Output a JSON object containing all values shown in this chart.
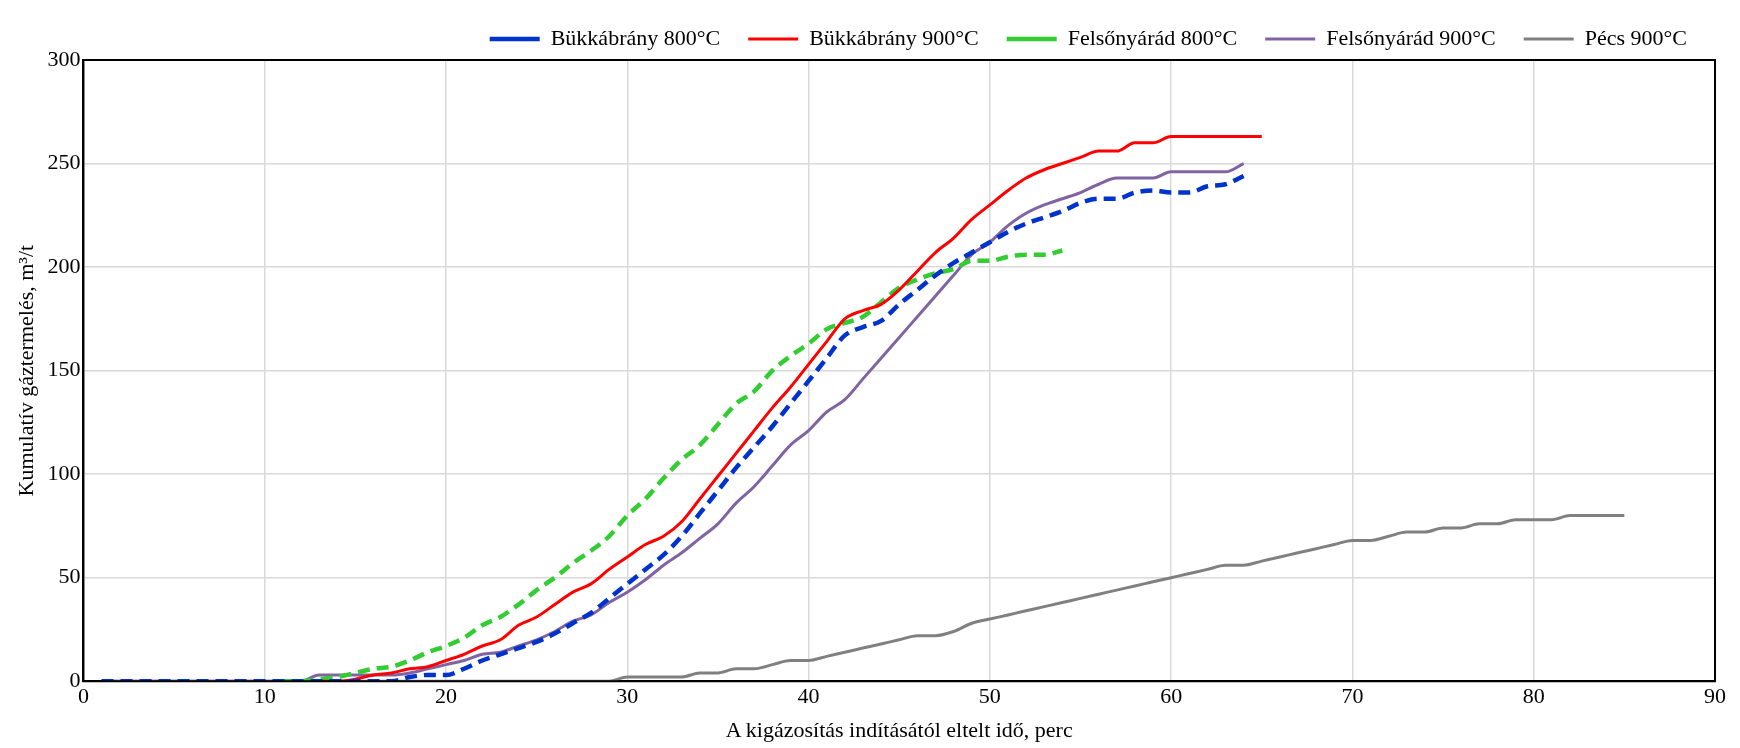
{
  "chart_data": {
    "type": "line",
    "xlabel": "A kigázosítás indításától eltelt idő, perc",
    "ylabel": "Kumulatív gáztermelés, m³/t",
    "x": [
      1,
      2,
      3,
      4,
      5,
      6,
      7,
      8,
      9,
      10,
      11,
      12,
      13,
      14,
      15,
      16,
      17,
      18,
      19,
      20,
      21,
      22,
      23,
      24,
      25,
      26,
      27,
      28,
      29,
      30,
      31,
      32,
      33,
      34,
      35,
      36,
      37,
      38,
      39,
      40,
      41,
      42,
      43,
      44,
      45,
      46,
      47,
      48,
      49,
      50,
      51,
      52,
      53,
      54,
      55,
      56,
      57,
      58,
      59,
      60,
      61,
      62,
      63,
      64,
      65,
      66,
      67,
      68,
      69,
      70,
      71,
      72,
      73,
      74,
      75,
      76,
      77,
      78,
      79,
      80,
      81,
      82,
      83,
      84,
      85
    ],
    "xlim": [
      0,
      90
    ],
    "xticks": [
      0,
      10,
      20,
      30,
      40,
      50,
      60,
      70,
      80,
      90
    ],
    "ylim": [
      0,
      300
    ],
    "yticks": [
      0,
      50,
      100,
      150,
      200,
      250,
      300
    ],
    "grid": true,
    "legend": "top",
    "marker": "none",
    "series": [
      {
        "name": "Bükkábrány 800°C",
        "color": "#0033cc",
        "line_style": "dashed",
        "values": [
          0,
          0,
          0,
          0,
          0,
          0,
          0,
          0,
          0,
          0,
          0,
          0,
          0,
          0,
          0,
          0,
          0,
          2,
          3,
          3,
          6,
          10,
          13,
          16,
          19,
          23,
          28,
          33,
          40,
          47,
          54,
          61,
          70,
          81,
          92,
          103,
          113,
          123,
          134,
          145,
          156,
          167,
          171,
          174,
          182,
          189,
          196,
          202,
          207,
          212,
          217,
          221,
          224,
          227,
          231,
          233,
          233,
          236,
          237,
          236,
          236,
          239,
          240,
          244,
          null,
          null,
          null,
          null,
          null,
          null,
          null,
          null,
          null,
          null,
          null,
          null,
          null,
          null,
          null,
          null,
          null,
          null,
          null,
          null,
          null
        ]
      },
      {
        "name": "Bükkábrány 900°C",
        "color": "#ff0000",
        "line_style": "solid",
        "values": [
          null,
          null,
          null,
          null,
          null,
          null,
          null,
          null,
          null,
          null,
          null,
          null,
          0,
          0,
          1,
          3,
          4,
          6,
          7,
          10,
          13,
          17,
          20,
          27,
          31,
          37,
          43,
          47,
          54,
          60,
          66,
          70,
          77,
          88,
          99,
          110,
          121,
          132,
          142,
          153,
          164,
          175,
          179,
          182,
          189,
          198,
          207,
          214,
          223,
          230,
          237,
          243,
          247,
          250,
          253,
          256,
          256,
          260,
          260,
          263,
          263,
          263,
          263,
          263,
          263,
          null,
          null,
          null,
          null,
          null,
          null,
          null,
          null,
          null,
          null,
          null,
          null,
          null,
          null,
          null,
          null,
          null,
          null,
          null,
          null
        ]
      },
      {
        "name": "Felsőnyárád 800°C",
        "color": "#33cc33",
        "line_style": "dashed",
        "values": [
          null,
          null,
          null,
          null,
          null,
          null,
          null,
          null,
          null,
          null,
          0,
          0,
          1,
          2,
          4,
          6,
          7,
          10,
          14,
          17,
          21,
          27,
          31,
          37,
          44,
          50,
          57,
          63,
          70,
          80,
          88,
          98,
          107,
          114,
          124,
          134,
          140,
          150,
          157,
          163,
          170,
          173,
          176,
          183,
          190,
          194,
          197,
          199,
          203,
          203,
          205,
          206,
          206,
          208,
          null,
          null,
          null,
          null,
          null,
          null,
          null,
          null,
          null,
          null,
          null,
          null,
          null,
          null,
          null,
          null,
          null,
          null,
          null,
          null,
          null,
          null,
          null,
          null,
          null,
          null,
          null,
          null,
          null,
          null,
          null
        ]
      },
      {
        "name": "Felsőnyárád 900°C",
        "color": "#8064a2",
        "line_style": "solid",
        "values": [
          0,
          0,
          0,
          0,
          0,
          0,
          0,
          0,
          0,
          0,
          0,
          0,
          3,
          3,
          3,
          3,
          3,
          4,
          6,
          8,
          10,
          13,
          14,
          17,
          20,
          24,
          29,
          32,
          38,
          43,
          49,
          56,
          62,
          69,
          76,
          86,
          94,
          104,
          114,
          121,
          130,
          136,
          146,
          156,
          166,
          176,
          186,
          196,
          206,
          212,
          220,
          226,
          230,
          233,
          236,
          240,
          243,
          243,
          243,
          246,
          246,
          246,
          246,
          250,
          null,
          null,
          null,
          null,
          null,
          null,
          null,
          null,
          null,
          null,
          null,
          null,
          null,
          null,
          null,
          null,
          null,
          null,
          null,
          null,
          null
        ]
      },
      {
        "name": "Pécs 900°C",
        "color": "#808080",
        "line_style": "solid",
        "values": [
          0,
          0,
          0,
          0,
          0,
          0,
          0,
          0,
          0,
          0,
          0,
          0,
          0,
          0,
          0,
          0,
          0,
          0,
          0,
          0,
          0,
          0,
          0,
          0,
          0,
          0,
          0,
          0,
          0,
          2,
          2,
          2,
          2,
          4,
          4,
          6,
          6,
          8,
          10,
          10,
          12,
          14,
          16,
          18,
          20,
          22,
          22,
          24,
          28,
          30,
          32,
          34,
          36,
          38,
          40,
          42,
          44,
          46,
          48,
          50,
          52,
          54,
          56,
          56,
          58,
          60,
          62,
          64,
          66,
          68,
          68,
          70,
          72,
          72,
          74,
          74,
          76,
          76,
          78,
          78,
          78,
          80,
          80,
          80,
          80
        ]
      }
    ]
  }
}
